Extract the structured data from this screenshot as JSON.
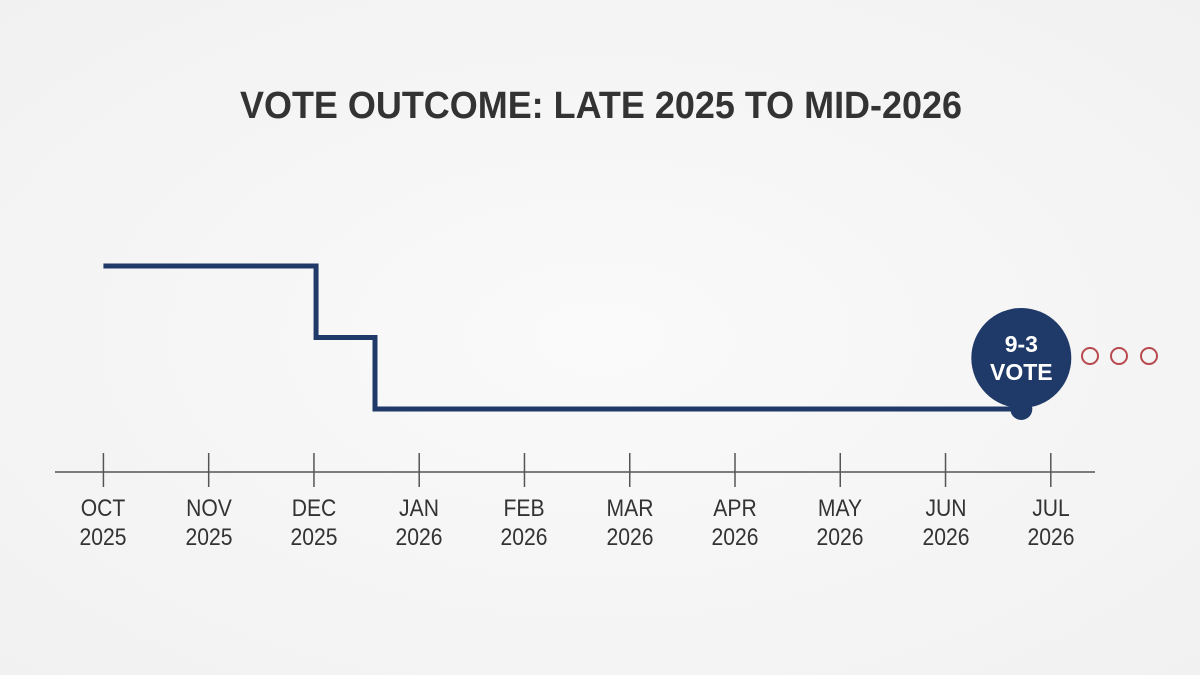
{
  "chart_data": {
    "type": "line",
    "title": "VOTE OUTCOME: LATE 2025 TO MID-2026",
    "step": "post",
    "series": [
      {
        "color": "#1f3a68",
        "x": [
          0,
          2.02,
          2.58,
          8.72
        ],
        "values": [
          3,
          2,
          1,
          1
        ]
      }
    ],
    "xlim": [
      -0.46,
      9.42
    ],
    "xticks": [
      {
        "value": 0,
        "label": "OCT\n2025"
      },
      {
        "value": 1,
        "label": "NOV\n2025"
      },
      {
        "value": 2,
        "label": "DEC\n2025"
      },
      {
        "value": 3,
        "label": "JAN\n2026"
      },
      {
        "value": 4,
        "label": "FEB\n2026"
      },
      {
        "value": 5,
        "label": "MAR\n2026"
      },
      {
        "value": 6,
        "label": "APR\n2026"
      },
      {
        "value": 7,
        "label": "MAY\n2026"
      },
      {
        "value": 8,
        "label": "JUN\n2026"
      },
      {
        "value": 9,
        "label": "JUL\n2026"
      }
    ],
    "annotation": {
      "text": "9-3\nVOTE",
      "x": 8.72,
      "color": "#1f3a68"
    }
  }
}
